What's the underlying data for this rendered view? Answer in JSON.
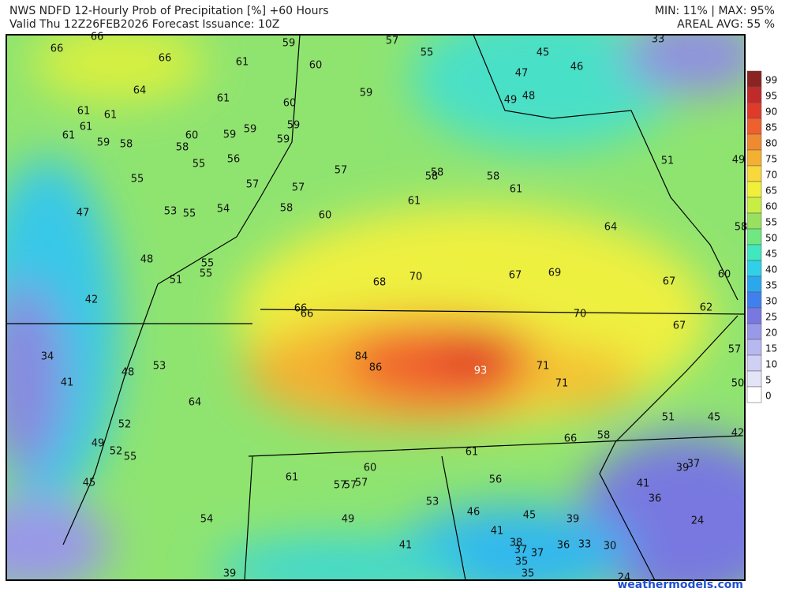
{
  "header": {
    "title": "NWS NDFD 12-Hourly Prob of Precipitation [%] +60 Hours",
    "valid": "Valid Thu 12Z26FEB2026   Forecast Issuance: 10Z",
    "minmax": "MIN: 11% | MAX: 95%",
    "areal_avg": "AREAL AVG: 55 %"
  },
  "legend": {
    "labels": [
      99,
      95,
      90,
      85,
      80,
      75,
      70,
      65,
      60,
      55,
      50,
      45,
      40,
      35,
      30,
      25,
      20,
      15,
      10,
      5,
      0
    ],
    "colors": [
      "#8b2323",
      "#c02a2a",
      "#e03a2a",
      "#f0602e",
      "#f08a30",
      "#f4b030",
      "#f8d83a",
      "#f0f03a",
      "#c8ee44",
      "#98e060",
      "#6ee880",
      "#40e8c0",
      "#30d0e8",
      "#2aa8ee",
      "#4080ee",
      "#7878e0",
      "#9a98e8",
      "#b8b8f0",
      "#d0d0f4",
      "#e4e4f8",
      "#ffffff"
    ]
  },
  "map": {
    "labels": [
      66,
      66,
      66,
      61,
      59,
      57,
      55,
      33,
      45,
      46,
      47,
      60,
      64,
      61,
      60,
      59,
      49,
      48,
      61,
      61,
      61,
      61,
      59,
      58,
      60,
      58,
      59,
      59,
      59,
      59,
      55,
      56,
      55,
      57,
      58,
      58,
      58,
      61,
      51,
      49,
      57,
      57,
      58,
      61,
      60,
      47,
      53,
      55,
      54,
      64,
      58,
      48,
      55,
      55,
      51,
      68,
      70,
      67,
      69,
      67,
      60,
      42,
      66,
      66,
      70,
      62,
      67,
      57,
      34,
      84,
      86,
      53,
      71,
      93,
      48,
      41,
      71,
      50,
      64,
      51,
      45,
      52,
      42,
      66,
      58,
      49,
      52,
      55,
      61,
      60,
      37,
      39,
      45,
      61,
      57,
      57,
      57,
      56,
      41,
      36,
      53,
      46,
      45,
      39,
      54,
      49,
      24,
      41,
      38,
      41,
      37,
      37,
      36,
      33,
      30,
      35,
      35,
      39,
      24
    ]
  },
  "watermark": "weathermodels.com"
}
